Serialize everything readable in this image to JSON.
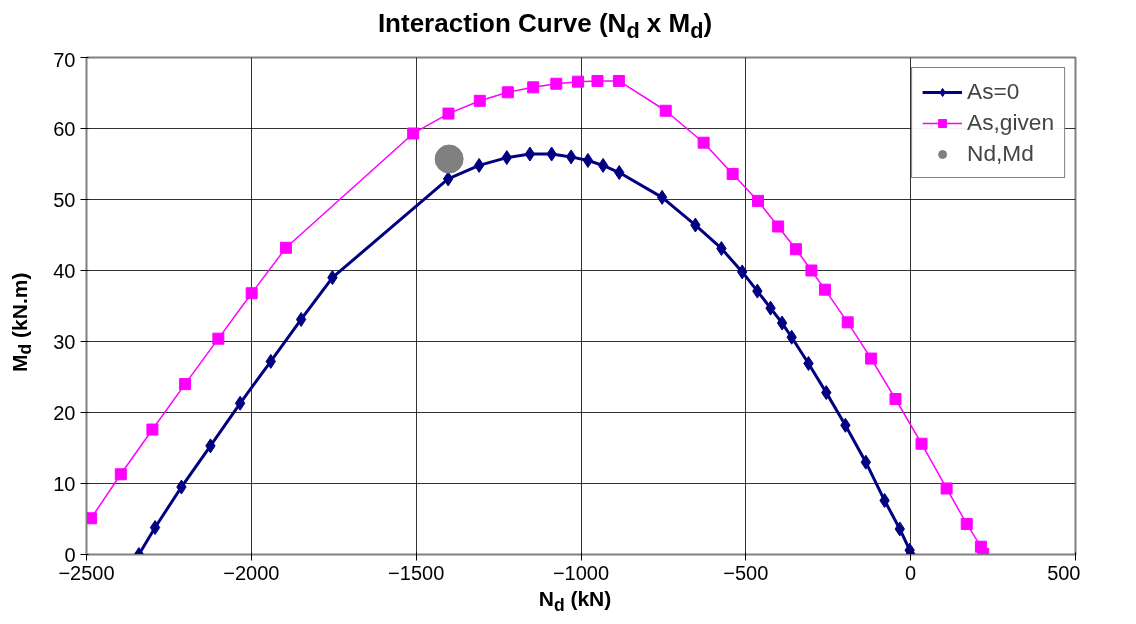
{
  "chart_data": {
    "type": "line",
    "title": "Interaction Curve (N$_{d}$ x M$_{d}$)",
    "xlabel": "N$_{d}$ (kN)",
    "ylabel": "M$_{d}$ (kN.m)",
    "xlim": [
      -2500,
      500
    ],
    "xticks": [
      -2500,
      -2000,
      -1500,
      -1000,
      -500,
      0,
      500
    ],
    "ylim": [
      0,
      70
    ],
    "yticks": [
      0,
      10,
      20,
      30,
      40,
      50,
      60,
      70
    ],
    "grid": true,
    "legend": "top right",
    "series": [
      {
        "name": "As=0",
        "color": "#000080",
        "marker": "diamond",
        "x": [
          -2341,
          -2292,
          -2212,
          -2124,
          -2034,
          -1941,
          -1849,
          -1754,
          -1403,
          -1309,
          -1225,
          -1155,
          -1089,
          -1030,
          -979,
          -933,
          -884,
          -754,
          -653,
          -574,
          -511,
          -465,
          -425,
          -390,
          -361,
          -310,
          -256,
          -198,
          -136,
          -79,
          -33,
          -3,
          0
        ],
        "values": [
          0,
          3.8,
          9.5,
          15.3,
          21.3,
          27.2,
          33.1,
          39.0,
          52.9,
          54.8,
          55.9,
          56.4,
          56.4,
          56.0,
          55.5,
          54.8,
          53.8,
          50.3,
          46.4,
          43.1,
          39.8,
          37.1,
          34.7,
          32.6,
          30.6,
          26.9,
          22.8,
          18.2,
          13.0,
          7.6,
          3.6,
          0.6,
          0
        ]
      },
      {
        "name": "As,given",
        "color": "#ff00ff",
        "marker": "square",
        "x": [
          -2486,
          -2396,
          -2300,
          -2201,
          -2100,
          -1999,
          -1895,
          -1509,
          -1402,
          -1307,
          -1222,
          -1145,
          -1075,
          -1009,
          -950,
          -885,
          -743,
          -628,
          -540,
          -463,
          -402,
          -348,
          -301,
          -260,
          -191,
          -120,
          -46,
          33,
          109,
          170,
          213,
          220
        ],
        "values": [
          5.1,
          11.3,
          17.6,
          24.0,
          30.4,
          36.8,
          43.2,
          59.3,
          62.1,
          63.9,
          65.1,
          65.8,
          66.3,
          66.6,
          66.7,
          66.7,
          62.5,
          58.0,
          53.6,
          49.8,
          46.2,
          43.0,
          40.0,
          37.3,
          32.7,
          27.6,
          21.9,
          15.6,
          9.3,
          4.3,
          1.1,
          0.1
        ]
      },
      {
        "name": "Nd,Md",
        "color": "#808080",
        "type": "scatter",
        "marker": "circle",
        "x": [
          -1400
        ],
        "values": [
          55.7
        ]
      }
    ]
  }
}
